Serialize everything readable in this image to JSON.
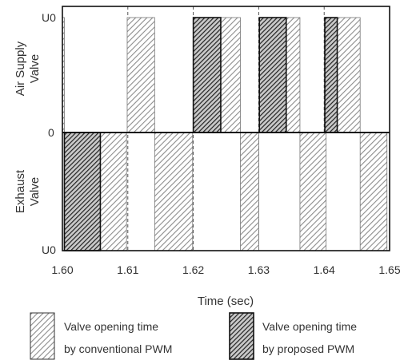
{
  "chart_data": {
    "type": "bar",
    "xlabel": "Time (sec)",
    "xlim": [
      1.6,
      1.65
    ],
    "x_ticks": [
      {
        "value": 1.6,
        "label": "1.60"
      },
      {
        "value": 1.61,
        "label": "1.61"
      },
      {
        "value": 1.62,
        "label": "1.62"
      },
      {
        "value": 1.63,
        "label": "1.63"
      },
      {
        "value": 1.64,
        "label": "1.64"
      },
      {
        "value": 1.65,
        "label": "1.65"
      }
    ],
    "y_ticks": {
      "top": "U0",
      "middle": "0",
      "bottom": "U0"
    },
    "y_groups": {
      "upper": [
        "Air Supply",
        "Valve"
      ],
      "lower": [
        "Exhaust",
        "Valve"
      ]
    },
    "grid": {
      "vertical": true,
      "vertical_style": "dashed",
      "horizontal": false
    },
    "legend_position": "bottom",
    "series": [
      {
        "name": "Valve opening time by conventional PWM",
        "legend_lines": [
          "Valve opening time",
          "by conventional PWM"
        ],
        "pattern": "light-hatch",
        "color": "#8c8c8c",
        "air_supply": [
          [
            1.6,
            1.6003
          ],
          [
            1.6099,
            1.6141
          ],
          [
            1.6242,
            1.6272
          ],
          [
            1.6342,
            1.6363
          ],
          [
            1.642,
            1.6455
          ]
        ],
        "exhaust": [
          [
            1.6058,
            1.6098
          ],
          [
            1.6141,
            1.6199
          ],
          [
            1.6272,
            1.63
          ],
          [
            1.6363,
            1.6403
          ],
          [
            1.6455,
            1.6496
          ]
        ]
      },
      {
        "name": "Valve opening time by proposed PWM",
        "legend_lines": [
          "Valve opening time",
          "by proposed PWM"
        ],
        "pattern": "dark-hatch",
        "color": "#222222",
        "air_supply": [
          [
            1.62,
            1.6242
          ],
          [
            1.6301,
            1.6342
          ],
          [
            1.6401,
            1.642
          ]
        ],
        "exhaust": [
          [
            1.6003,
            1.6058
          ]
        ]
      }
    ]
  }
}
